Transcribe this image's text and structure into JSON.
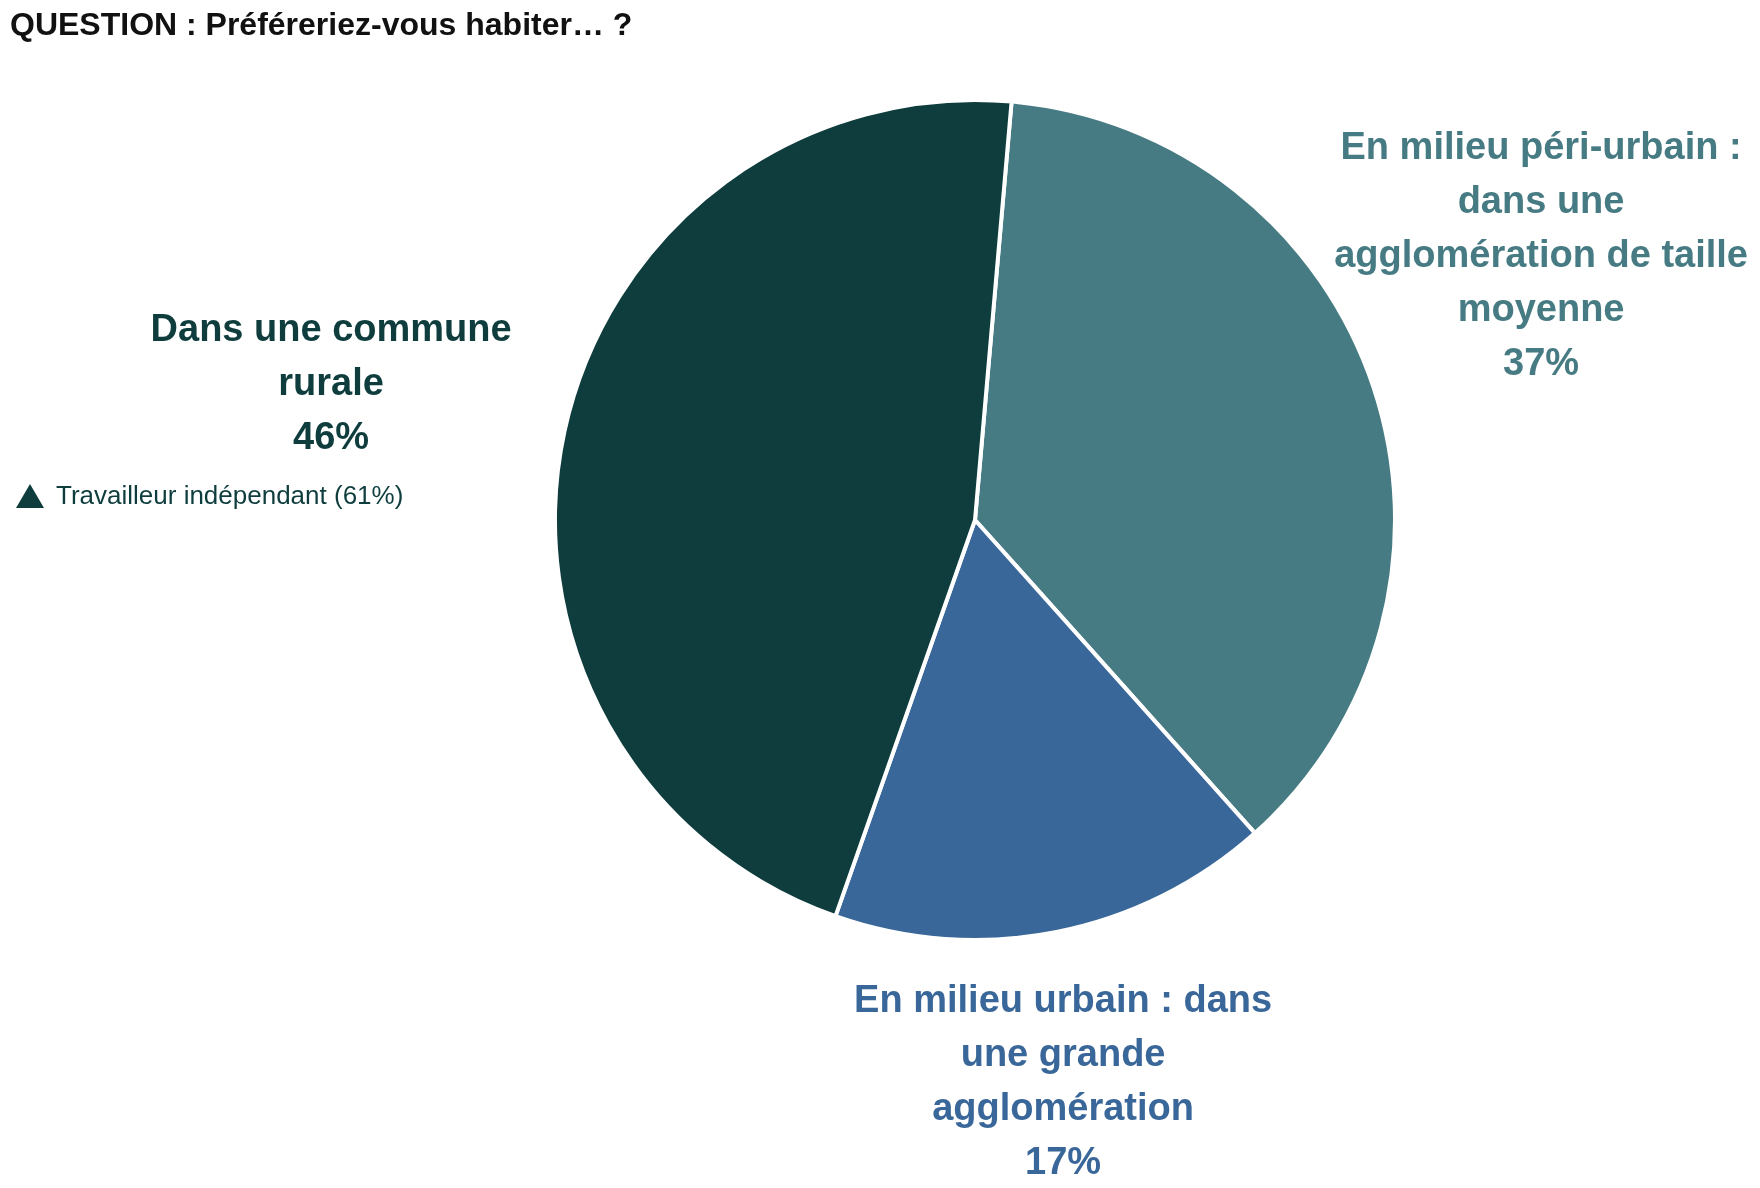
{
  "chart_data": {
    "type": "pie",
    "title": "QUESTION : Préféreriez-vous habiter… ?",
    "categories": [
      "En milieu péri-urbain : dans une agglomération de taille moyenne",
      "En milieu urbain : dans une grande agglomération",
      "Dans une commune rurale"
    ],
    "values": [
      37,
      17,
      46
    ],
    "value_labels": [
      "37%",
      "17%",
      "46%"
    ],
    "colors": [
      "#477b83",
      "#3a6799",
      "#0f3d3d"
    ],
    "annotations": [
      "Travailleur indépendant (61%)"
    ],
    "legend": false
  }
}
